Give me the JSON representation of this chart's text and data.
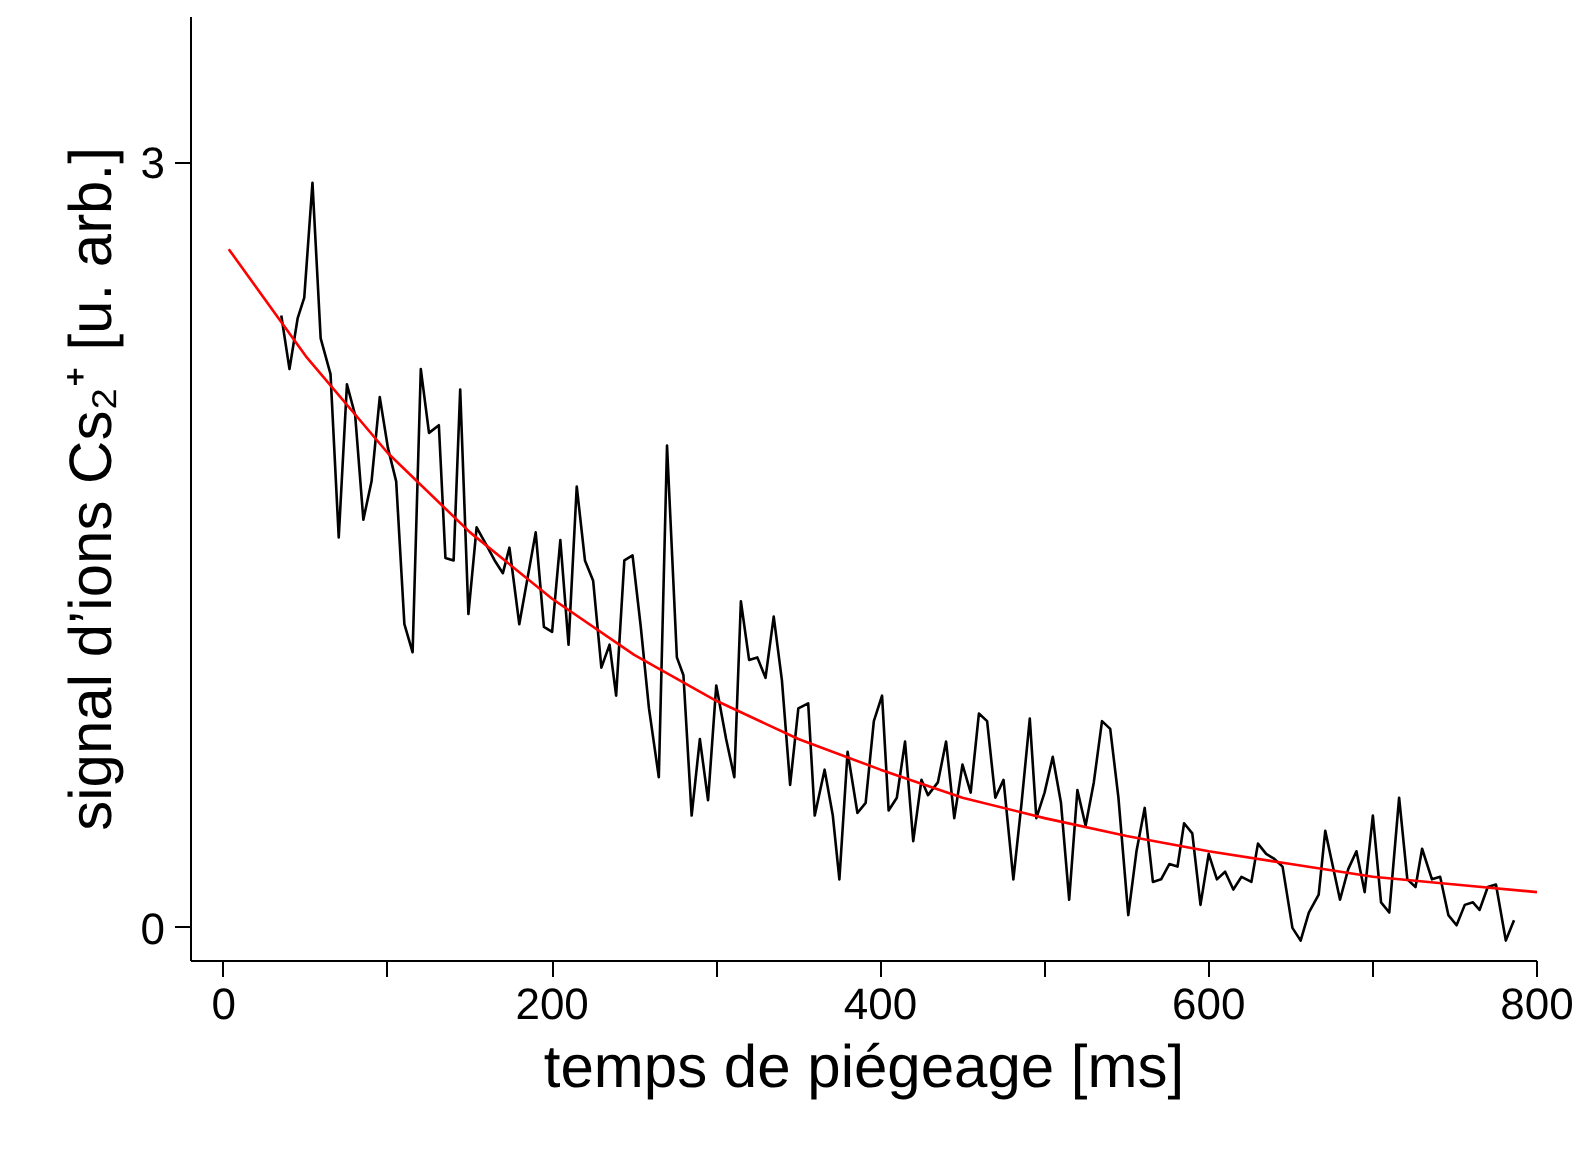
{
  "chart_data": {
    "type": "line",
    "xlabel": "temps de piégeage [ms]",
    "ylabel": "signal d’ions Cs₂⁺ [u. arb.]",
    "xlim": [
      -20,
      800
    ],
    "ylim": [
      -0.13,
      3.57
    ],
    "xticks": [
      0,
      {
        "value": 100,
        "label": null
      },
      200,
      {
        "value": 300,
        "label": null
      },
      400,
      {
        "value": 500,
        "label": null
      },
      600,
      {
        "value": 700,
        "label": null
      },
      800
    ],
    "yticks": [
      0,
      3
    ],
    "grid": false,
    "marker": "none",
    "line_style": "solid",
    "series": [
      {
        "color": "#000000",
        "x": [
          35,
          40,
          45,
          49,
          54,
          59,
          65,
          70,
          75,
          80,
          85,
          90,
          95,
          100,
          105,
          110,
          115,
          120,
          125,
          131,
          135,
          140,
          144,
          149,
          154,
          160,
          165,
          170,
          174,
          180,
          190,
          195,
          200,
          205,
          210,
          215,
          220,
          225,
          230,
          235,
          239,
          244,
          249,
          254,
          259,
          265,
          270,
          276,
          280,
          285,
          290,
          295,
          300,
          306,
          311,
          315,
          320,
          325,
          330,
          335,
          340,
          345,
          350,
          356,
          360,
          366,
          371,
          375,
          380,
          386,
          391,
          396,
          401,
          405,
          410,
          415,
          420,
          425,
          429,
          435,
          440,
          445,
          450,
          455,
          460,
          465,
          470,
          475,
          481,
          486,
          491,
          495,
          500,
          505,
          510,
          515,
          520,
          525,
          530,
          535,
          540,
          545,
          551,
          556,
          561,
          566,
          571,
          576,
          581,
          585,
          590,
          595,
          600,
          605,
          610,
          615,
          620,
          626,
          630,
          635,
          640,
          645,
          651,
          656,
          661,
          667,
          671,
          675,
          680,
          685,
          690,
          695,
          700,
          705,
          710,
          716,
          721,
          726,
          730,
          736,
          741,
          746,
          751,
          756,
          761,
          765,
          770,
          775,
          781,
          786
        ],
        "values": [
          2.4,
          2.19,
          2.39,
          2.47,
          2.92,
          2.31,
          2.17,
          1.53,
          2.13,
          2.01,
          1.6,
          1.75,
          2.08,
          1.88,
          1.75,
          1.19,
          1.08,
          2.19,
          1.94,
          1.97,
          1.45,
          1.44,
          2.11,
          1.23,
          1.57,
          1.5,
          1.44,
          1.39,
          1.49,
          1.19,
          1.55,
          1.18,
          1.16,
          1.52,
          1.11,
          1.73,
          1.44,
          1.36,
          1.02,
          1.11,
          0.91,
          1.44,
          1.46,
          1.18,
          0.86,
          0.59,
          1.89,
          1.06,
          0.99,
          0.44,
          0.74,
          0.5,
          0.95,
          0.74,
          0.59,
          1.28,
          1.05,
          1.06,
          0.98,
          1.22,
          0.97,
          0.56,
          0.86,
          0.88,
          0.44,
          0.62,
          0.44,
          0.19,
          0.69,
          0.45,
          0.49,
          0.81,
          0.91,
          0.46,
          0.51,
          0.73,
          0.34,
          0.58,
          0.52,
          0.57,
          0.73,
          0.43,
          0.64,
          0.53,
          0.84,
          0.81,
          0.51,
          0.58,
          0.19,
          0.49,
          0.82,
          0.43,
          0.53,
          0.67,
          0.49,
          0.11,
          0.54,
          0.4,
          0.57,
          0.81,
          0.78,
          0.51,
          0.05,
          0.3,
          0.47,
          0.18,
          0.19,
          0.25,
          0.24,
          0.41,
          0.37,
          0.09,
          0.29,
          0.19,
          0.22,
          0.15,
          0.2,
          0.18,
          0.33,
          0.29,
          0.27,
          0.24,
          0.0,
          -0.05,
          0.06,
          0.13,
          0.38,
          0.26,
          0.11,
          0.23,
          0.3,
          0.14,
          0.44,
          0.1,
          0.06,
          0.51,
          0.19,
          0.16,
          0.31,
          0.19,
          0.2,
          0.05,
          0.01,
          0.09,
          0.1,
          0.07,
          0.16,
          0.17,
          -0.05,
          0.03
        ]
      },
      {
        "color": "#ff0000",
        "x": [
          3,
          50,
          100,
          150,
          200,
          250,
          300,
          350,
          400,
          450,
          500,
          550,
          600,
          650,
          700,
          750,
          800
        ],
        "values": [
          2.66,
          2.24,
          1.86,
          1.55,
          1.29,
          1.07,
          0.89,
          0.74,
          0.62,
          0.51,
          0.43,
          0.36,
          0.3,
          0.25,
          0.2,
          0.17,
          0.14
        ]
      }
    ]
  }
}
